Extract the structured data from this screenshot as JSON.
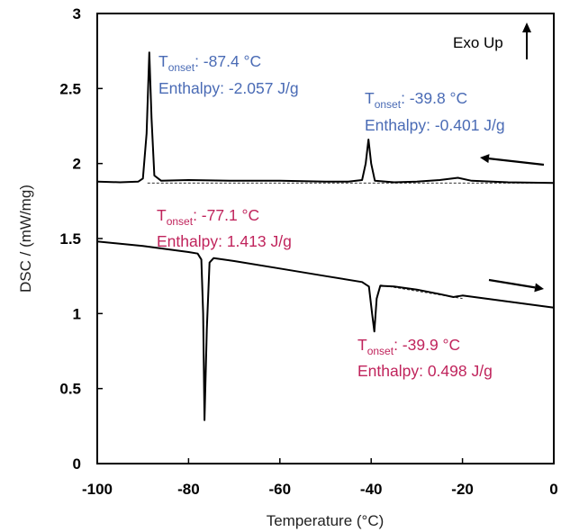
{
  "chart_data": {
    "type": "line",
    "xlabel": "Temperature (°C)",
    "ylabel": "DSC / (mW/mg)",
    "xlim": [
      -100,
      0
    ],
    "ylim": [
      0,
      3
    ],
    "xticks": [
      "-100",
      "-80",
      "-60",
      "-40",
      "-20",
      "0"
    ],
    "yticks": [
      "0",
      "0.5",
      "1",
      "1.5",
      "2",
      "2.5",
      "3"
    ],
    "grid": false,
    "legend_text": "Exo Up",
    "series": [
      {
        "scan": "cooling",
        "color": "#000000",
        "points": [
          [
            -100,
            1.88
          ],
          [
            -95,
            1.875
          ],
          [
            -91,
            1.88
          ],
          [
            -90,
            1.9
          ],
          [
            -89.2,
            2.2
          ],
          [
            -88.6,
            2.74
          ],
          [
            -88.1,
            2.3
          ],
          [
            -87.5,
            1.92
          ],
          [
            -86,
            1.885
          ],
          [
            -80,
            1.89
          ],
          [
            -70,
            1.885
          ],
          [
            -60,
            1.885
          ],
          [
            -50,
            1.88
          ],
          [
            -45,
            1.88
          ],
          [
            -42,
            1.89
          ],
          [
            -41.2,
            2.0
          ],
          [
            -40.6,
            2.16
          ],
          [
            -40.0,
            2.0
          ],
          [
            -39.2,
            1.885
          ],
          [
            -35,
            1.875
          ],
          [
            -30,
            1.88
          ],
          [
            -25,
            1.89
          ],
          [
            -21,
            1.905
          ],
          [
            -18,
            1.885
          ],
          [
            -10,
            1.875
          ],
          [
            0,
            1.87
          ]
        ]
      },
      {
        "scan": "heating",
        "color": "#000000",
        "points": [
          [
            -100,
            1.48
          ],
          [
            -90,
            1.45
          ],
          [
            -80,
            1.41
          ],
          [
            -78,
            1.4
          ],
          [
            -77.2,
            1.36
          ],
          [
            -76.8,
            1.0
          ],
          [
            -76.5,
            0.29
          ],
          [
            -76.0,
            0.9
          ],
          [
            -75.4,
            1.34
          ],
          [
            -74.5,
            1.37
          ],
          [
            -70,
            1.35
          ],
          [
            -60,
            1.3
          ],
          [
            -50,
            1.25
          ],
          [
            -42,
            1.21
          ],
          [
            -40.5,
            1.18
          ],
          [
            -39.8,
            1.0
          ],
          [
            -39.3,
            0.88
          ],
          [
            -38.8,
            1.1
          ],
          [
            -38.0,
            1.185
          ],
          [
            -35,
            1.18
          ],
          [
            -30,
            1.16
          ],
          [
            -25,
            1.13
          ],
          [
            -22,
            1.11
          ],
          [
            -20,
            1.12
          ],
          [
            -10,
            1.08
          ],
          [
            0,
            1.04
          ]
        ]
      }
    ],
    "baselines": [
      {
        "x": [
          -89,
          0
        ],
        "y": [
          1.87,
          1.87
        ]
      },
      {
        "x": [
          -38,
          -20
        ],
        "y": [
          1.19,
          1.1
        ]
      }
    ],
    "arrows": [
      {
        "direction": "left"
      },
      {
        "direction": "right"
      }
    ],
    "annotations": [
      {
        "line1_main": "T",
        "line1_sub": "onset",
        "line1_rest": ": -87.4 °C",
        "line2": "Enthalpy: -2.057 J/g",
        "color": "#4a6bb5"
      },
      {
        "line1_main": "T",
        "line1_sub": "onset",
        "line1_rest": ": -39.8 °C",
        "line2": "Enthalpy: -0.401 J/g",
        "color": "#4a6bb5"
      },
      {
        "line1_main": "T",
        "line1_sub": "onset",
        "line1_rest": ": -77.1 °C",
        "line2": "Enthalpy:  1.413 J/g",
        "color": "#c0245c"
      },
      {
        "line1_main": "T",
        "line1_sub": "onset",
        "line1_rest": ": -39.9 °C",
        "line2": "Enthalpy: 0.498 J/g",
        "color": "#c0245c"
      }
    ]
  }
}
